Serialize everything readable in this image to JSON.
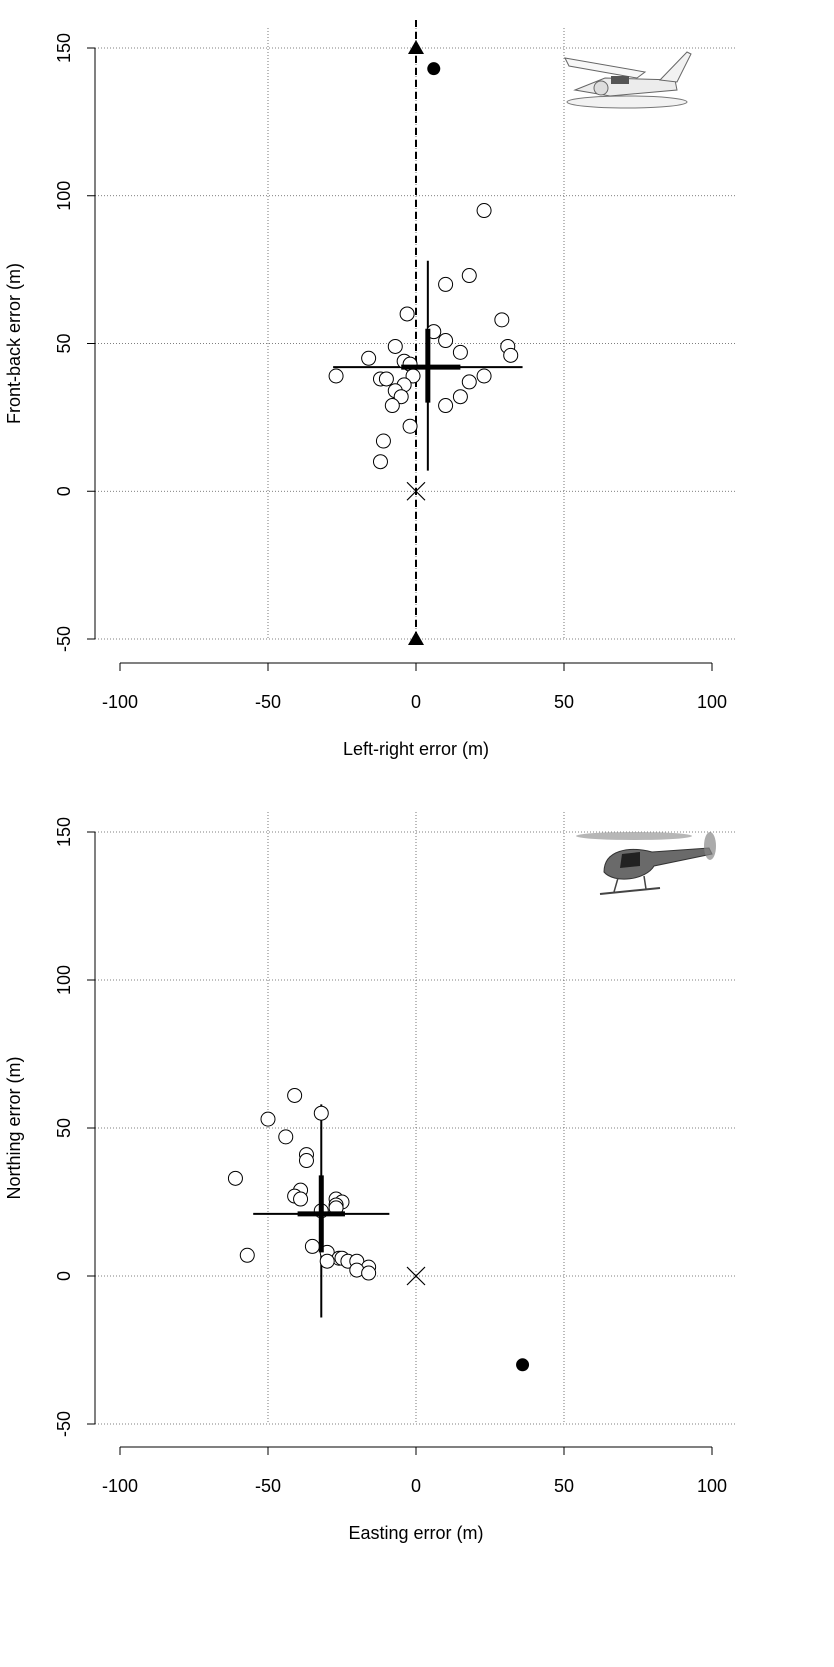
{
  "chart_data": [
    {
      "type": "scatter",
      "xlabel": "Left-right error (m)",
      "ylabel": "Front-back error (m)",
      "xlim": [
        -100,
        100
      ],
      "ylim": [
        -50,
        150
      ],
      "xticks": [
        "-100",
        "-50",
        "0",
        "50",
        "100"
      ],
      "yticks": [
        "-50",
        "0",
        "50",
        "100",
        "150"
      ],
      "grid": true,
      "icon": "floatplane-icon",
      "origin_marker": [
        0,
        0
      ],
      "flight_line": {
        "x": 0,
        "y_start": -50,
        "y_end": 150
      },
      "triangles": [
        {
          "x": 0,
          "y": 150
        },
        {
          "x": 0,
          "y": -50
        }
      ],
      "outlier": {
        "x": 6,
        "y": 143
      },
      "points": [
        [
          23,
          95
        ],
        [
          18,
          73
        ],
        [
          10,
          70
        ],
        [
          29,
          58
        ],
        [
          -3,
          60
        ],
        [
          6,
          54
        ],
        [
          10,
          51
        ],
        [
          31,
          49
        ],
        [
          -7,
          49
        ],
        [
          15,
          47
        ],
        [
          32,
          46
        ],
        [
          -16,
          45
        ],
        [
          -4,
          44
        ],
        [
          -2,
          43
        ],
        [
          -1,
          39
        ],
        [
          -27,
          39
        ],
        [
          23,
          39
        ],
        [
          -12,
          38
        ],
        [
          -10,
          38
        ],
        [
          18,
          37
        ],
        [
          -4,
          36
        ],
        [
          -7,
          34
        ],
        [
          -5,
          32
        ],
        [
          15,
          32
        ],
        [
          -8,
          29
        ],
        [
          10,
          29
        ],
        [
          -2,
          22
        ],
        [
          -11,
          17
        ],
        [
          -12,
          10
        ]
      ],
      "mean": {
        "x": 4,
        "y": 42
      },
      "error_bars": {
        "thin_x": [
          -28,
          36
        ],
        "thin_y": [
          7,
          78
        ],
        "thick_x": [
          -5,
          15
        ],
        "thick_y": [
          30,
          55
        ]
      }
    },
    {
      "type": "scatter",
      "xlabel": "Easting error (m)",
      "ylabel": "Northing error (m)",
      "xlim": [
        -100,
        100
      ],
      "ylim": [
        -50,
        150
      ],
      "xticks": [
        "-100",
        "-50",
        "0",
        "50",
        "100"
      ],
      "yticks": [
        "-50",
        "0",
        "50",
        "100",
        "150"
      ],
      "grid": true,
      "icon": "helicopter-icon",
      "origin_marker": [
        0,
        0
      ],
      "outlier": {
        "x": 36,
        "y": -30
      },
      "points": [
        [
          -41,
          61
        ],
        [
          -50,
          53
        ],
        [
          -32,
          55
        ],
        [
          -44,
          47
        ],
        [
          -37,
          41
        ],
        [
          -37,
          39
        ],
        [
          -61,
          33
        ],
        [
          -39,
          29
        ],
        [
          -41,
          27
        ],
        [
          -39,
          26
        ],
        [
          -27,
          26
        ],
        [
          -25,
          25
        ],
        [
          -27,
          24
        ],
        [
          -27,
          23
        ],
        [
          -32,
          22
        ],
        [
          -35,
          10
        ],
        [
          -30,
          8
        ],
        [
          -57,
          7
        ],
        [
          -26,
          6
        ],
        [
          -25,
          6
        ],
        [
          -23,
          5
        ],
        [
          -30,
          5
        ],
        [
          -20,
          5
        ],
        [
          -16,
          3
        ],
        [
          -20,
          2
        ],
        [
          -16,
          1
        ]
      ],
      "mean": {
        "x": -32,
        "y": 21
      },
      "error_bars": {
        "thin_x": [
          -55,
          -9
        ],
        "thin_y": [
          -14,
          58
        ],
        "thick_x": [
          -40,
          -24
        ],
        "thick_y": [
          8,
          34
        ]
      }
    }
  ]
}
